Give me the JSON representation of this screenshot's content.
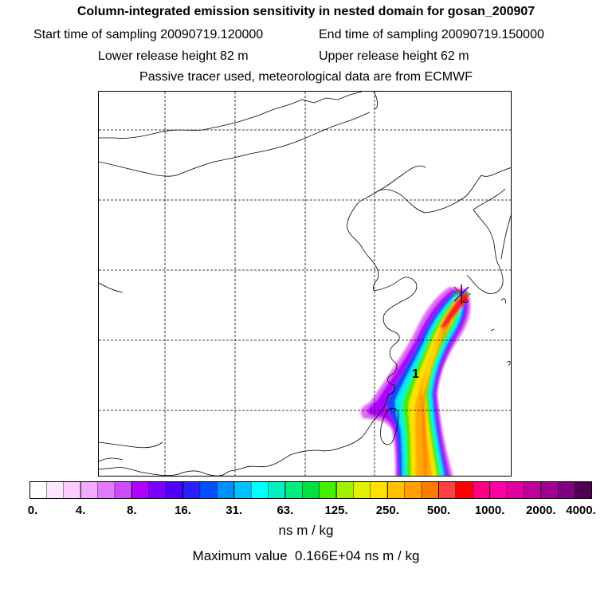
{
  "header": {
    "title": "Column-integrated emission sensitivity in nested domain for gosan_200907",
    "start_label": "Start time of sampling 20090719.120000",
    "end_label": "End time of sampling 20090719.150000",
    "lower_label": "Lower release height   82 m",
    "upper_label": "Upper release height   62 m",
    "tracer_label": "Passive tracer used, meteorological data are from ECMWF"
  },
  "map": {
    "marker_label": "1",
    "plume_colors": {
      "outer": "#e070f0",
      "edge": "#b000ff",
      "blue": "#2040ff",
      "cyan": "#00f0f0",
      "green": "#40f000",
      "yellow": "#ffe000",
      "orange": "#ffaa00",
      "core": "#ff8800",
      "red": "#ff2020"
    }
  },
  "colorbar": {
    "colors": [
      "#ffffff",
      "#ffe6ff",
      "#ffccff",
      "#f0aaff",
      "#e07aff",
      "#cc4cff",
      "#b000ff",
      "#7a00ff",
      "#5000ff",
      "#2a20ff",
      "#0050ff",
      "#0090ff",
      "#00c0ff",
      "#00ffff",
      "#00f0c0",
      "#00ee80",
      "#00e040",
      "#40f000",
      "#a0f000",
      "#e0f000",
      "#ffe000",
      "#ffc000",
      "#ffa000",
      "#ff7a00",
      "#ff4040",
      "#ff0000",
      "#ff0080",
      "#ff00a0",
      "#e000a0",
      "#c0009a",
      "#a00090",
      "#800080",
      "#500050"
    ],
    "ticks": [
      "0.",
      "4.",
      "8.",
      "16.",
      "31.",
      "63.",
      "125.",
      "250.",
      "500.",
      "1000.",
      "2000.",
      "4000."
    ],
    "units": "ns m / kg",
    "max_value_text": "Maximum value  0.166E+04 ns m / kg"
  }
}
